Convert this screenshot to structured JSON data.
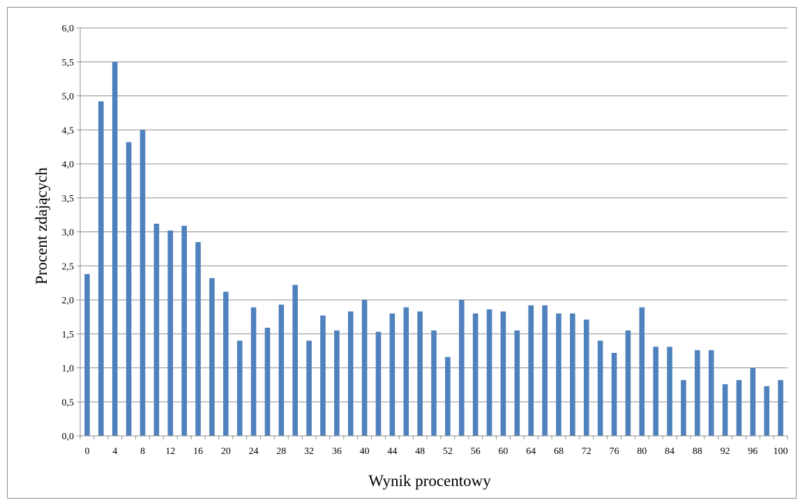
{
  "chart_data": {
    "type": "bar",
    "xlabel": "Wynik procentowy",
    "ylabel": "Procent zdających",
    "ylim": [
      0,
      6
    ],
    "yticks": [
      "0,0",
      "0,5",
      "1,0",
      "1,5",
      "2,0",
      "2,5",
      "3,0",
      "3,5",
      "4,0",
      "4,5",
      "5,0",
      "5,5",
      "6,0"
    ],
    "grid": true,
    "bar_color": "#4f81bd",
    "categories": [
      0,
      2,
      4,
      6,
      8,
      10,
      12,
      14,
      16,
      18,
      20,
      22,
      24,
      26,
      28,
      30,
      32,
      34,
      36,
      38,
      40,
      42,
      44,
      46,
      48,
      50,
      52,
      54,
      56,
      58,
      60,
      62,
      64,
      66,
      68,
      70,
      72,
      74,
      76,
      78,
      80,
      82,
      84,
      86,
      88,
      90,
      92,
      94,
      96,
      98,
      100
    ],
    "xtick_labels": [
      "0",
      "4",
      "8",
      "12",
      "16",
      "20",
      "24",
      "28",
      "32",
      "36",
      "40",
      "44",
      "48",
      "52",
      "56",
      "60",
      "64",
      "68",
      "72",
      "76",
      "80",
      "84",
      "88",
      "92",
      "96",
      "100"
    ],
    "values": [
      2.38,
      4.92,
      5.5,
      4.32,
      4.5,
      3.12,
      3.02,
      3.09,
      2.85,
      2.32,
      2.12,
      1.4,
      1.89,
      1.59,
      1.93,
      2.22,
      1.4,
      1.77,
      1.55,
      1.83,
      2.0,
      1.53,
      1.8,
      1.89,
      1.83,
      1.55,
      1.16,
      2.0,
      1.8,
      1.86,
      1.83,
      1.55,
      1.92,
      1.92,
      1.8,
      1.8,
      1.71,
      1.4,
      1.22,
      1.55,
      1.89,
      1.31,
      1.31,
      0.82,
      1.26,
      1.26,
      0.76,
      0.82,
      1.0,
      0.73,
      0.82
    ]
  }
}
